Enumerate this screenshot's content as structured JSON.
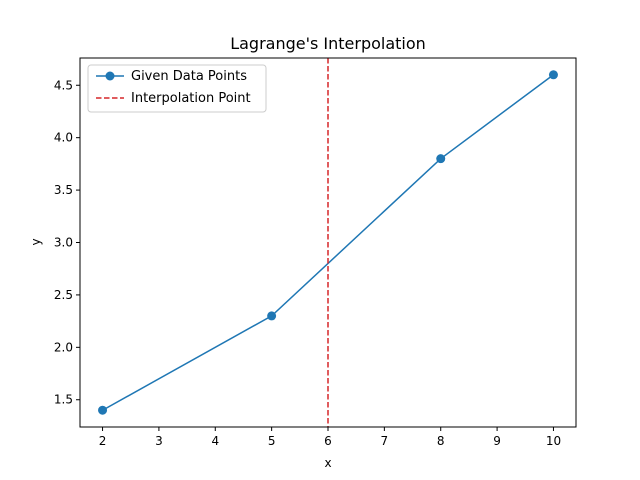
{
  "chart_data": {
    "type": "line",
    "title": "Lagrange's Interpolation",
    "xlabel": "x",
    "ylabel": "y",
    "xlim": [
      1.6,
      10.4
    ],
    "ylim": [
      1.24,
      4.76
    ],
    "xticks": [
      2,
      3,
      4,
      5,
      6,
      7,
      8,
      9,
      10
    ],
    "yticks": [
      1.5,
      2.0,
      2.5,
      3.0,
      3.5,
      4.0,
      4.5
    ],
    "grid": false,
    "legend_position": "top-left",
    "series": [
      {
        "name": "Given Data Points",
        "x": [
          2,
          5,
          8,
          10
        ],
        "y": [
          1.4,
          2.3,
          3.8,
          4.6
        ],
        "color": "#1f77b4",
        "style": "solid",
        "marker": "circle"
      }
    ],
    "vlines": [
      {
        "name": "Interpolation Point",
        "x": 6,
        "color": "#d62728",
        "style": "dashed"
      }
    ]
  }
}
